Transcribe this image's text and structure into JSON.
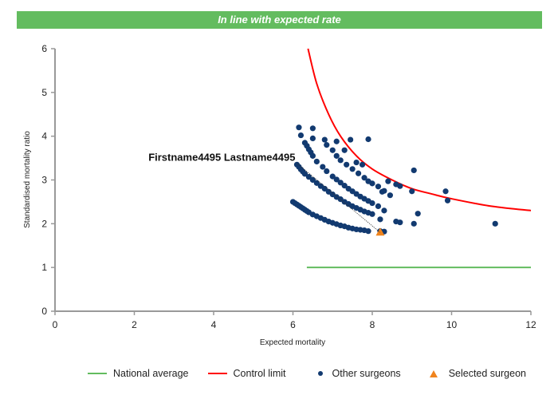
{
  "banner": {
    "text": "In line with expected rate",
    "color": "#63bc5f"
  },
  "chart_data": {
    "type": "scatter",
    "title": "In line with expected rate",
    "xlabel": "Expected mortality",
    "ylabel": "Standardised mortality ratio",
    "xlim": [
      0,
      12
    ],
    "ylim": [
      0,
      6
    ],
    "xticks": [
      "0",
      "2",
      "4",
      "6",
      "8",
      "10",
      "12"
    ],
    "yticks": [
      "0",
      "1",
      "2",
      "3",
      "4",
      "5",
      "6"
    ],
    "grid": false,
    "legend_position": "bottom",
    "colors": {
      "national_average": "#63bc5f",
      "control_limit": "#ff0000",
      "other_surgeons": "#123a70",
      "selected_surgeon": "#f0841d"
    },
    "series": [
      {
        "name": "National average",
        "type": "line",
        "points": [
          [
            6.35,
            1.0
          ],
          [
            12.0,
            1.0
          ]
        ]
      },
      {
        "name": "Control limit",
        "type": "line",
        "points": [
          [
            6.38,
            6.0
          ],
          [
            6.6,
            5.2
          ],
          [
            6.9,
            4.5
          ],
          [
            7.2,
            4.0
          ],
          [
            7.6,
            3.55
          ],
          [
            8.0,
            3.25
          ],
          [
            8.5,
            3.0
          ],
          [
            9.0,
            2.8
          ],
          [
            9.5,
            2.68
          ],
          [
            10.0,
            2.57
          ],
          [
            11.0,
            2.4
          ],
          [
            12.0,
            2.3
          ]
        ]
      },
      {
        "name": "Other surgeons",
        "type": "scatter",
        "points": [
          [
            6.0,
            2.5
          ],
          [
            6.05,
            2.47
          ],
          [
            6.1,
            2.44
          ],
          [
            6.15,
            2.41
          ],
          [
            6.2,
            2.38
          ],
          [
            6.25,
            2.35
          ],
          [
            6.3,
            2.32
          ],
          [
            6.35,
            2.29
          ],
          [
            6.4,
            2.26
          ],
          [
            6.5,
            2.21
          ],
          [
            6.6,
            2.17
          ],
          [
            6.7,
            2.13
          ],
          [
            6.8,
            2.09
          ],
          [
            6.9,
            2.05
          ],
          [
            7.0,
            2.02
          ],
          [
            7.1,
            1.99
          ],
          [
            7.2,
            1.96
          ],
          [
            7.3,
            1.94
          ],
          [
            7.4,
            1.91
          ],
          [
            7.5,
            1.89
          ],
          [
            7.6,
            1.87
          ],
          [
            7.7,
            1.86
          ],
          [
            7.8,
            1.85
          ],
          [
            7.9,
            1.83
          ],
          [
            8.2,
            1.83
          ],
          [
            8.3,
            1.82
          ],
          [
            6.1,
            3.35
          ],
          [
            6.15,
            3.3
          ],
          [
            6.2,
            3.24
          ],
          [
            6.25,
            3.19
          ],
          [
            6.3,
            3.14
          ],
          [
            6.4,
            3.07
          ],
          [
            6.5,
            3.0
          ],
          [
            6.6,
            2.93
          ],
          [
            6.7,
            2.86
          ],
          [
            6.8,
            2.8
          ],
          [
            6.9,
            2.73
          ],
          [
            7.0,
            2.67
          ],
          [
            7.1,
            2.61
          ],
          [
            7.2,
            2.56
          ],
          [
            7.3,
            2.5
          ],
          [
            7.4,
            2.45
          ],
          [
            7.5,
            2.4
          ],
          [
            7.6,
            2.36
          ],
          [
            7.7,
            2.32
          ],
          [
            7.8,
            2.28
          ],
          [
            7.9,
            2.25
          ],
          [
            8.0,
            2.22
          ],
          [
            8.2,
            2.1
          ],
          [
            8.6,
            2.05
          ],
          [
            8.7,
            2.03
          ],
          [
            9.05,
            2.0
          ],
          [
            6.3,
            3.85
          ],
          [
            6.35,
            3.78
          ],
          [
            6.4,
            3.7
          ],
          [
            6.45,
            3.63
          ],
          [
            6.5,
            3.55
          ],
          [
            6.6,
            3.42
          ],
          [
            6.75,
            3.3
          ],
          [
            6.85,
            3.2
          ],
          [
            7.0,
            3.08
          ],
          [
            7.1,
            3.01
          ],
          [
            7.2,
            2.94
          ],
          [
            7.3,
            2.87
          ],
          [
            7.4,
            2.8
          ],
          [
            7.5,
            2.74
          ],
          [
            7.6,
            2.68
          ],
          [
            7.7,
            2.62
          ],
          [
            7.8,
            2.57
          ],
          [
            7.9,
            2.52
          ],
          [
            8.0,
            2.47
          ],
          [
            8.15,
            2.4
          ],
          [
            8.3,
            2.3
          ],
          [
            9.15,
            2.23
          ],
          [
            6.15,
            4.2
          ],
          [
            6.2,
            4.02
          ],
          [
            6.5,
            4.18
          ],
          [
            6.5,
            3.95
          ],
          [
            6.8,
            3.92
          ],
          [
            6.85,
            3.8
          ],
          [
            7.0,
            3.68
          ],
          [
            7.1,
            3.55
          ],
          [
            7.2,
            3.45
          ],
          [
            7.35,
            3.35
          ],
          [
            7.5,
            3.25
          ],
          [
            7.65,
            3.15
          ],
          [
            7.8,
            3.05
          ],
          [
            7.9,
            2.97
          ],
          [
            8.0,
            2.92
          ],
          [
            8.15,
            2.85
          ],
          [
            8.3,
            2.75
          ],
          [
            8.45,
            2.65
          ],
          [
            7.1,
            3.88
          ],
          [
            7.45,
            3.92
          ],
          [
            7.9,
            3.93
          ],
          [
            7.3,
            3.68
          ],
          [
            7.6,
            3.4
          ],
          [
            7.75,
            3.35
          ],
          [
            8.4,
            2.97
          ],
          [
            8.6,
            2.9
          ],
          [
            8.7,
            2.86
          ],
          [
            9.0,
            2.74
          ],
          [
            9.05,
            3.22
          ],
          [
            9.85,
            2.74
          ],
          [
            9.9,
            2.53
          ],
          [
            11.1,
            2.0
          ],
          [
            8.25,
            2.73
          ]
        ]
      },
      {
        "name": "Selected surgeon",
        "type": "scatter",
        "points": [
          [
            8.2,
            1.8
          ]
        ]
      }
    ],
    "annotations": [
      {
        "text": "Firstname4495 Lastname4495",
        "target_series": "Selected surgeon",
        "target": [
          8.2,
          1.8
        ],
        "anchor": [
          6.1,
          3.38
        ]
      }
    ]
  },
  "legend": [
    {
      "label": "National average",
      "symbol": "line",
      "color": "#63bc5f"
    },
    {
      "label": "Control limit",
      "symbol": "line",
      "color": "#ff0000"
    },
    {
      "label": "Other surgeons",
      "symbol": "dot",
      "color": "#123a70"
    },
    {
      "label": "Selected surgeon",
      "symbol": "triangle",
      "color": "#f0841d"
    }
  ]
}
